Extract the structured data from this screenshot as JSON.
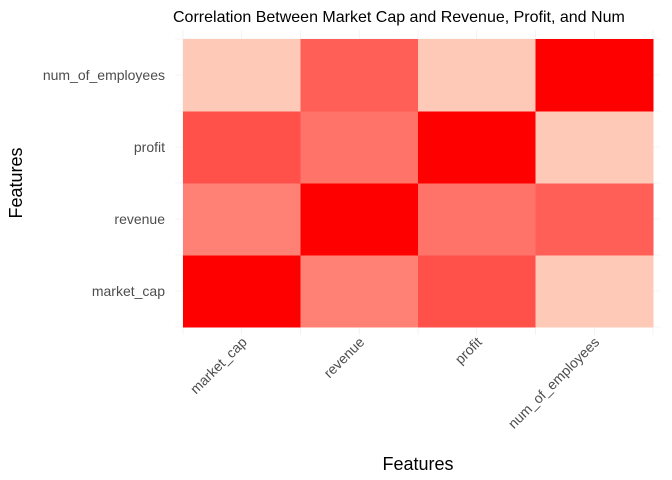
{
  "chart_data": {
    "type": "heatmap",
    "title": "Correlation Between Market Cap and Revenue, Profit, and Num",
    "xlabel": "Features",
    "ylabel": "Features",
    "x_categories": [
      "market_cap",
      "revenue",
      "profit",
      "num_of_employees"
    ],
    "y_categories": [
      "market_cap",
      "revenue",
      "profit",
      "num_of_employees"
    ],
    "values": [
      [
        1.0,
        0.55,
        0.72,
        0.3
      ],
      [
        0.55,
        1.0,
        0.6,
        0.67
      ],
      [
        0.72,
        0.6,
        1.0,
        0.3
      ],
      [
        0.3,
        0.67,
        0.3,
        1.0
      ]
    ],
    "color_low": "#ffc9b8",
    "color_high": "#ff0000",
    "grid": true,
    "legend": "none"
  }
}
